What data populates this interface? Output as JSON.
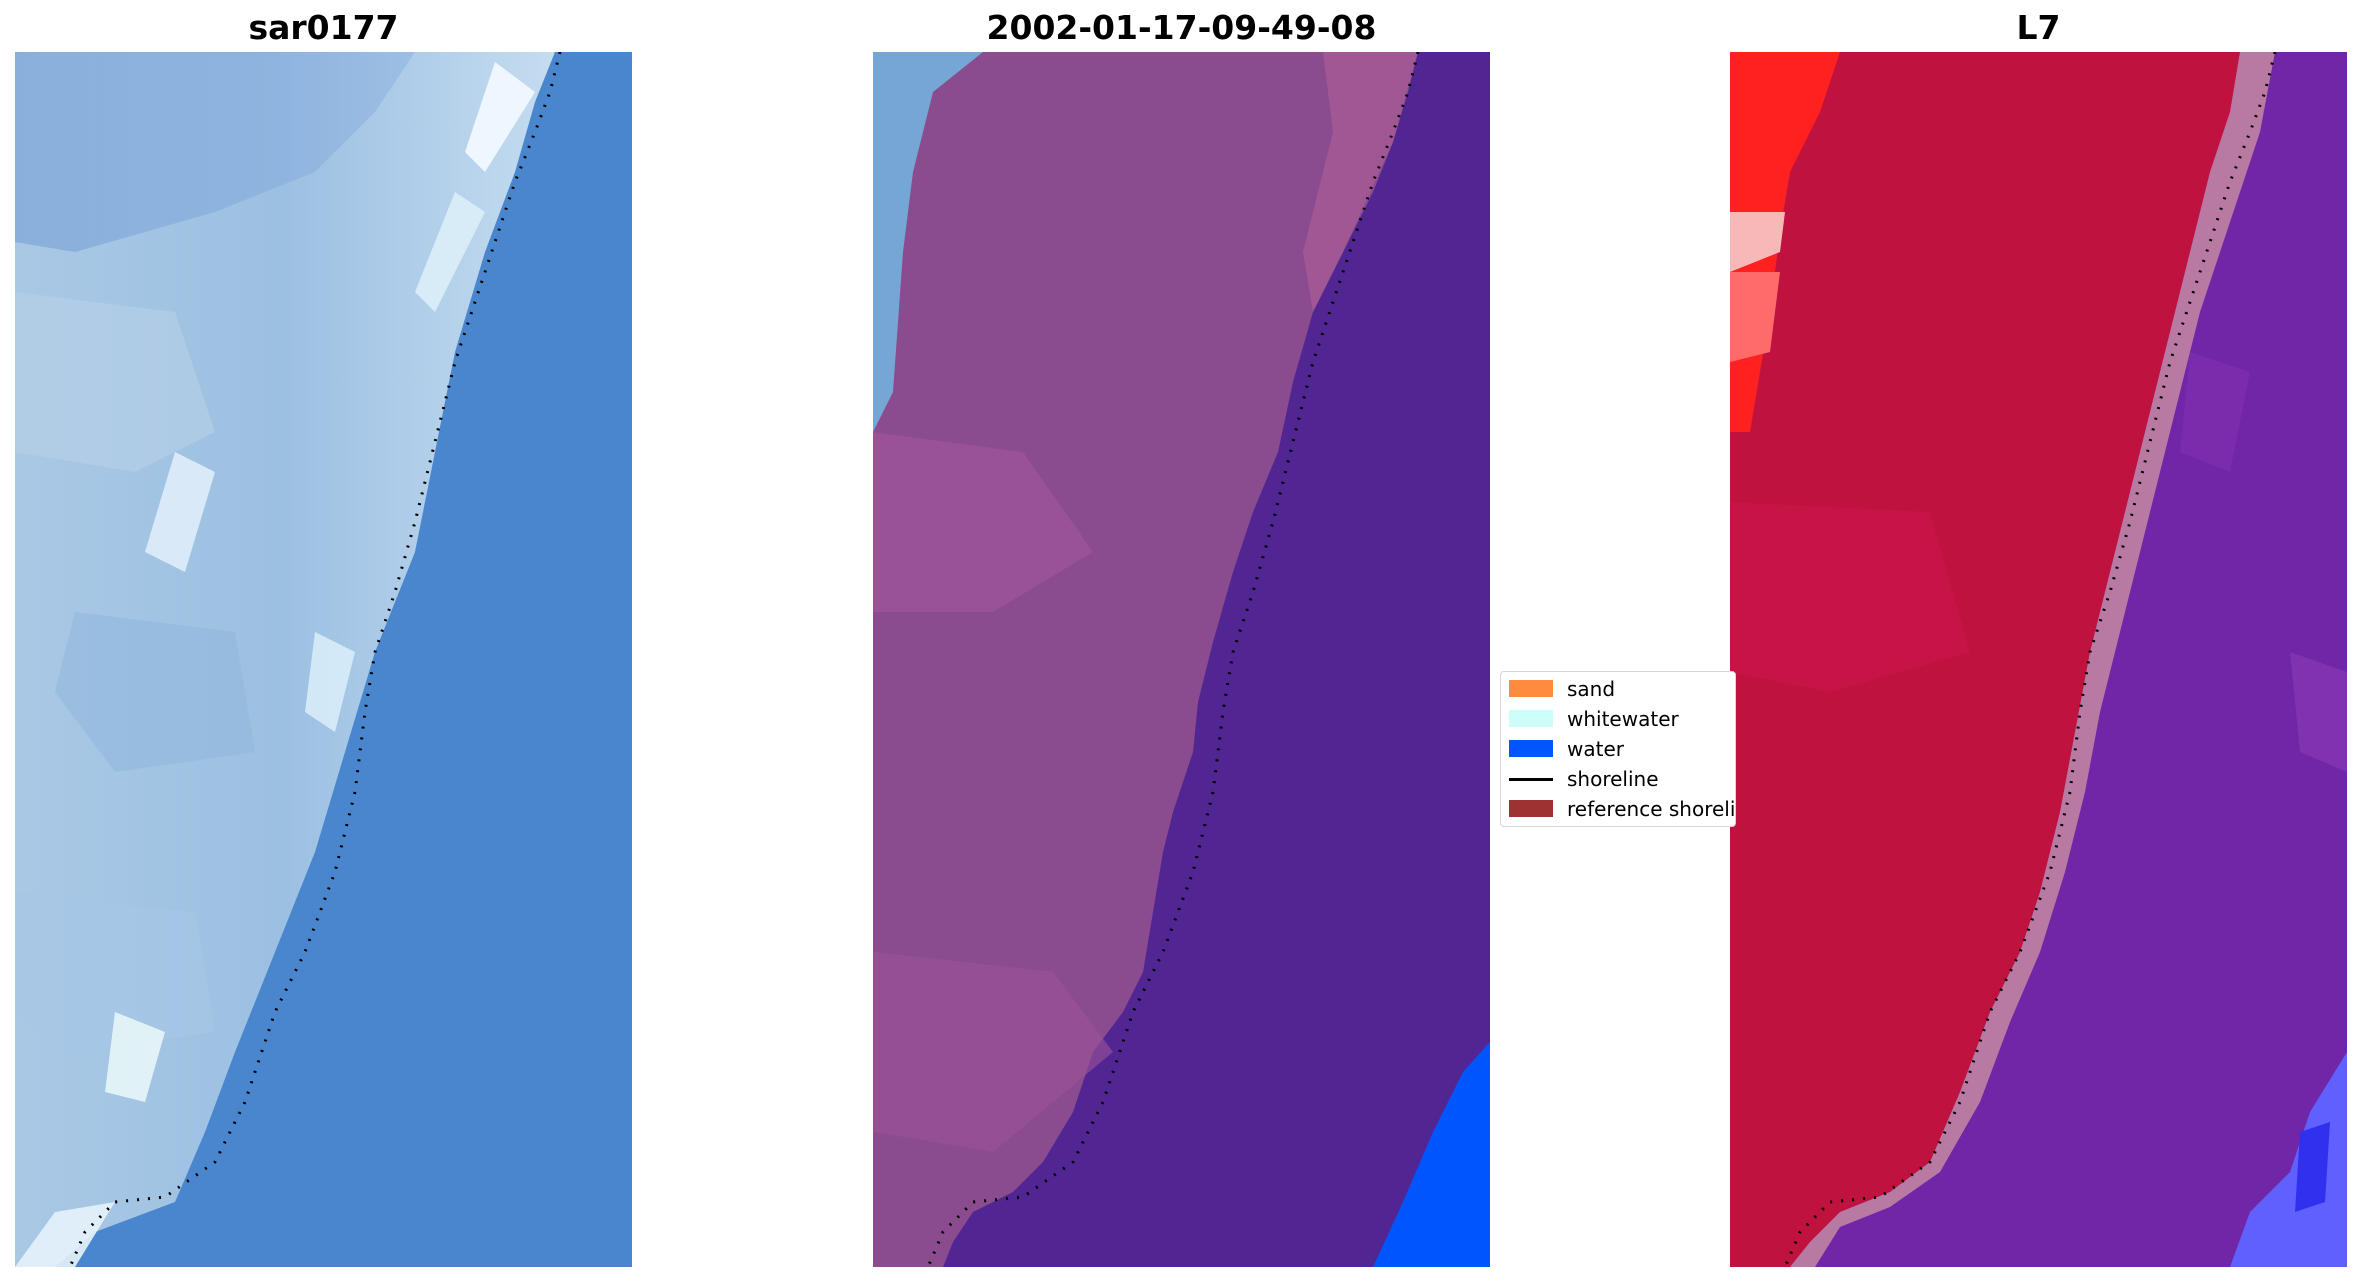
{
  "panels": [
    {
      "title": "sar0177",
      "name": "rgb-image-panel"
    },
    {
      "title": "2002-01-17-09-49-08",
      "name": "classified-image-panel"
    },
    {
      "title": "L7",
      "name": "mndwi-image-panel"
    }
  ],
  "legend": {
    "items": [
      {
        "label": "sand",
        "color": "#ff8c3c",
        "kind": "patch"
      },
      {
        "label": "whitewater",
        "color": "#ccfffa",
        "kind": "patch"
      },
      {
        "label": "water",
        "color": "#0055ff",
        "kind": "patch"
      },
      {
        "label": "shoreline",
        "color": "#000000",
        "kind": "line"
      },
      {
        "label": "reference shoreline",
        "color": "#9e3131",
        "kind": "patch"
      }
    ]
  },
  "colors": {
    "water_blue": "#4a86cd",
    "classified_land": "#8a4c8e",
    "classified_water": "#512693",
    "classified_ocean": "#0055ff",
    "mndwi_land": "#c0123f",
    "mndwi_water": "#7026a6"
  }
}
